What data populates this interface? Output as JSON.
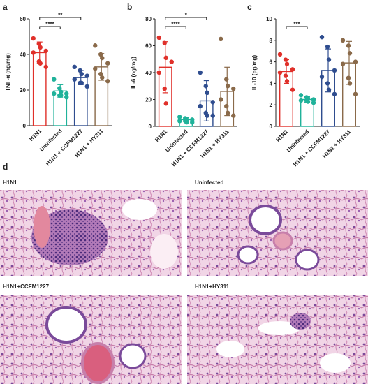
{
  "chart_data": [
    {
      "type": "bar",
      "panel_label": "a",
      "ylabel": "TNF-α (ng/mg)",
      "categories": [
        "H1N1",
        "Uninfected",
        "H1N1 + CCFM1227",
        "H1N1 + HY311"
      ],
      "colors": [
        "#e0302a",
        "#20b29a",
        "#2f4d8f",
        "#8a6a4a"
      ],
      "values": [
        41,
        19.5,
        27,
        33
      ],
      "errors": [
        6,
        3.5,
        4,
        7.5
      ],
      "points": [
        [
          49,
          46,
          44,
          42,
          41,
          36,
          35,
          33
        ],
        [
          26,
          21,
          19,
          18,
          18,
          17,
          17,
          16
        ],
        [
          33,
          31,
          29,
          28,
          26,
          24,
          24,
          22
        ],
        [
          45,
          40,
          38,
          35,
          32,
          29,
          27,
          25
        ]
      ],
      "ylim": [
        0,
        60
      ],
      "yticks": [
        0,
        20,
        40,
        60
      ],
      "significance": [
        {
          "between": [
            "H1N1",
            "Uninfected"
          ],
          "text": "****"
        },
        {
          "between": [
            "H1N1",
            "H1N1 + CCFM1227"
          ],
          "text": "**"
        }
      ]
    },
    {
      "type": "bar",
      "panel_label": "b",
      "ylabel": "IL-6 (ng/mg)",
      "categories": [
        "H1N1",
        "Uninfected",
        "H1N1 + CCFM1227",
        "H1N1 + HY311"
      ],
      "colors": [
        "#e0302a",
        "#20b29a",
        "#2f4d8f",
        "#8a6a4a"
      ],
      "values": [
        44,
        5,
        19,
        26
      ],
      "errors": [
        19,
        1.5,
        15,
        18
      ],
      "points": [
        [
          66,
          62,
          51,
          48,
          40,
          28,
          17
        ],
        [
          7,
          6,
          5,
          5,
          4,
          4,
          3,
          3
        ],
        [
          40,
          30,
          25,
          18,
          15,
          10,
          8,
          8
        ],
        [
          65,
          35,
          30,
          28,
          20,
          15,
          10,
          8
        ]
      ],
      "ylim": [
        0,
        80
      ],
      "yticks": [
        0,
        20,
        40,
        60,
        80
      ],
      "significance": [
        {
          "between": [
            "H1N1",
            "Uninfected"
          ],
          "text": "****"
        },
        {
          "between": [
            "H1N1",
            "H1N1 + CCFM1227"
          ],
          "text": "*"
        }
      ]
    },
    {
      "type": "bar",
      "panel_label": "c",
      "ylabel": "IL-10 (pg/mg)",
      "categories": [
        "H1N1",
        "Uninfected",
        "H1N1 + CCFM1227",
        "H1N1 + HY311"
      ],
      "colors": [
        "#e0302a",
        "#20b29a",
        "#2f4d8f",
        "#8a6a4a"
      ],
      "values": [
        5.1,
        2.5,
        5.2,
        5.9
      ],
      "errors": [
        1.1,
        0.25,
        2,
        2
      ],
      "points": [
        [
          6.7,
          6.2,
          5.8,
          5.3,
          5.0,
          4.7,
          4.2,
          3.4
        ],
        [
          2.9,
          2.7,
          2.6,
          2.5,
          2.4,
          2.4,
          2.3,
          2.2
        ],
        [
          8.3,
          7.4,
          6.2,
          5.2,
          4.6,
          4.0,
          3.4,
          3.0
        ],
        [
          8.0,
          7.5,
          6.8,
          6.0,
          5.8,
          4.5,
          4.0,
          3.0
        ]
      ],
      "ylim": [
        0,
        10
      ],
      "yticks": [
        0,
        2,
        4,
        6,
        8,
        10
      ],
      "significance": [
        {
          "between": [
            "H1N1",
            "Uninfected"
          ],
          "text": "***"
        }
      ]
    }
  ],
  "histology": {
    "panel_label": "d",
    "images": [
      "H1N1",
      "Uninfected",
      "H1N1+CCFM1227",
      "H1N1+HY311"
    ]
  }
}
